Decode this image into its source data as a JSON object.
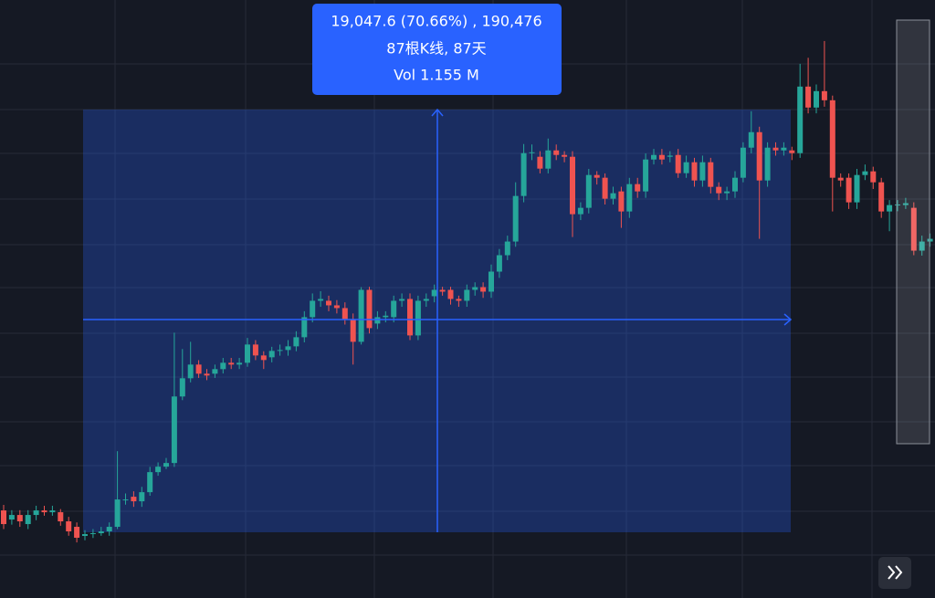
{
  "chart_data": {
    "type": "candlestick",
    "up_color": "#26a69a",
    "down_color": "#ef5350",
    "ylim": [
      24000,
      50900
    ],
    "annotations": [
      "19,047.6 (70.66%) , 190,476",
      "87根K线, 87天",
      "Vol 1.155 M"
    ],
    "open": [
      27940,
      27530,
      27735,
      27325,
      27735,
      27940,
      27858,
      27858,
      27448,
      27202,
      26792,
      26874,
      26915,
      26997,
      27202,
      28432,
      28555,
      28350,
      28760,
      29662,
      29908,
      30072,
      33065,
      33885,
      34500,
      34090,
      34090,
      34295,
      34582,
      34500,
      34582,
      35402,
      34910,
      34828,
      35115,
      35156,
      35320,
      35730,
      36632,
      37370,
      37370,
      37165,
      37042,
      36550,
      35525,
      37862,
      36345,
      36632,
      36632,
      37370,
      37452,
      35812,
      37370,
      37575,
      37862,
      37862,
      37452,
      37370,
      37862,
      37985,
      37780,
      38682,
      39420,
      40035,
      42085,
      44012,
      43848,
      43315,
      44135,
      43930,
      43848,
      41265,
      41552,
      43028,
      42905,
      41962,
      42290,
      41388,
      42618,
      42290,
      43725,
      43930,
      43848,
      43930,
      43110,
      43602,
      42782,
      43602,
      42495,
      42208,
      42290,
      42905,
      44258,
      44955,
      42782,
      44258,
      44135,
      44135,
      44012,
      47005,
      46062,
      46800,
      46390,
      42905,
      42905,
      41798,
      43028,
      43192,
      42700,
      41388,
      41675,
      41675,
      41552,
      39625,
      40035
    ],
    "high": [
      28190,
      27950,
      27950,
      27950,
      28150,
      28150,
      28150,
      28000,
      27650,
      27400,
      27050,
      27100,
      27200,
      27400,
      30605,
      28700,
      28800,
      29000,
      29900,
      30100,
      30300,
      35935,
      35200,
      35525,
      34700,
      34300,
      34500,
      34800,
      34800,
      34800,
      35700,
      35600,
      35100,
      35300,
      35400,
      35600,
      36000,
      36900,
      37700,
      37800,
      37600,
      37400,
      37300,
      36800,
      37985,
      38000,
      36900,
      36900,
      37600,
      37700,
      37700,
      37600,
      37700,
      38100,
      38000,
      38000,
      37600,
      38100,
      38200,
      38200,
      39000,
      39700,
      40300,
      42700,
      44422,
      44400,
      44100,
      44668,
      44400,
      44100,
      44100,
      41800,
      43300,
      43200,
      43100,
      42500,
      42500,
      42900,
      42900,
      44000,
      44200,
      44200,
      44100,
      44200,
      43900,
      43800,
      43900,
      43800,
      42700,
      42500,
      43200,
      44500,
      45898,
      45200,
      44500,
      44500,
      44500,
      44300,
      48030,
      48300,
      47100,
      49055,
      46600,
      43100,
      43100,
      43300,
      43500,
      43400,
      42900,
      41900,
      41900,
      42000,
      41800,
      40300,
      40400
    ],
    "low": [
      27100,
      27300,
      27200,
      27100,
      27500,
      27700,
      27700,
      27250,
      26800,
      26500,
      26600,
      26700,
      26800,
      26800,
      27100,
      28200,
      28100,
      28100,
      28600,
      29500,
      29800,
      29900,
      32900,
      33700,
      33900,
      33800,
      33900,
      34100,
      34300,
      34300,
      34400,
      34700,
      34300,
      34600,
      34900,
      34900,
      35100,
      35500,
      36400,
      37100,
      36900,
      36800,
      36300,
      34500,
      35402,
      35900,
      36100,
      36400,
      36400,
      37100,
      35600,
      35600,
      37100,
      37300,
      37600,
      37200,
      37100,
      37100,
      37600,
      37500,
      37500,
      38400,
      39200,
      39800,
      41800,
      43700,
      43100,
      43100,
      43700,
      43600,
      40240,
      41000,
      41300,
      42600,
      41700,
      41700,
      40650,
      41100,
      42000,
      42000,
      43500,
      43500,
      43600,
      42900,
      42900,
      42500,
      42500,
      42200,
      41900,
      41900,
      42000,
      42700,
      44000,
      40158,
      42500,
      43900,
      43900,
      43700,
      43800,
      45800,
      45800,
      46100,
      41388,
      42500,
      41500,
      41500,
      42800,
      42400,
      41100,
      40500,
      41400,
      41500,
      39420,
      39400,
      39800
    ],
    "close": [
      27325,
      27735,
      27448,
      27735,
      27940,
      27858,
      27940,
      27448,
      26997,
      26710,
      26874,
      26915,
      26997,
      27202,
      28432,
      28432,
      28350,
      28760,
      29662,
      29908,
      30072,
      33065,
      33885,
      34500,
      34090,
      34008,
      34295,
      34582,
      34500,
      34582,
      35402,
      34910,
      34705,
      35115,
      35156,
      35320,
      35730,
      36632,
      37370,
      37450,
      37165,
      37042,
      36550,
      35525,
      37862,
      36140,
      36632,
      36700,
      37370,
      37450,
      35812,
      37370,
      37452,
      37862,
      37780,
      37452,
      37370,
      37862,
      37985,
      37780,
      38682,
      39420,
      40035,
      42085,
      44012,
      44050,
      43315,
      44135,
      43930,
      43848,
      41265,
      41552,
      43028,
      42905,
      41962,
      42208,
      41388,
      42618,
      42290,
      43725,
      43930,
      43725,
      43900,
      43110,
      43602,
      42782,
      43602,
      42495,
      42208,
      42290,
      42905,
      44258,
      44955,
      42782,
      44258,
      44135,
      44258,
      44012,
      47005,
      46062,
      46800,
      46390,
      42905,
      42782,
      41798,
      43028,
      43192,
      42700,
      41388,
      41675,
      41700,
      41760,
      39625,
      40035,
      40158
    ]
  }
}
